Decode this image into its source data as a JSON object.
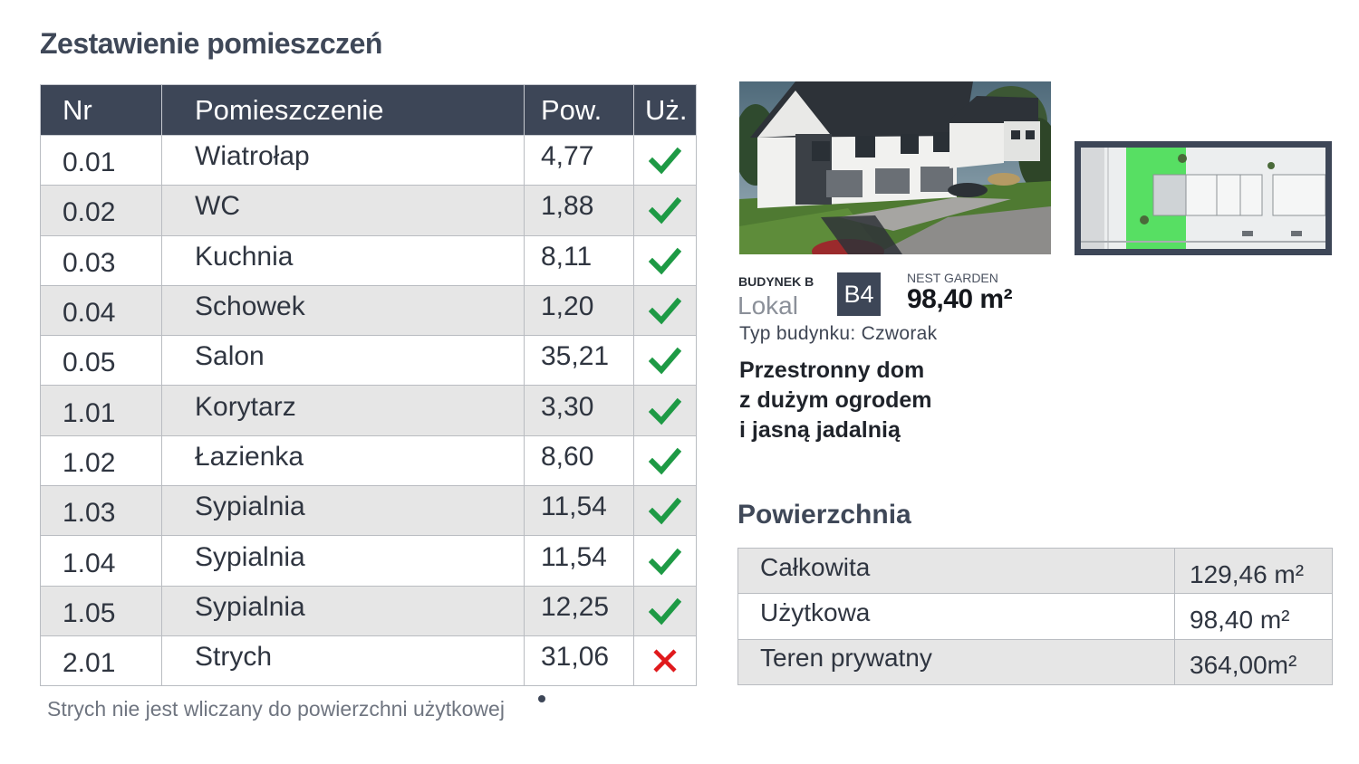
{
  "title": "Zestawienie pomieszczeń",
  "rooms_table": {
    "headers": {
      "nr": "Nr",
      "name": "Pomieszczenie",
      "area": "Pow.",
      "usable": "Uż."
    },
    "rows": [
      {
        "nr": "0.01",
        "name": "Wiatrołap",
        "area": "4,77",
        "usable": true
      },
      {
        "nr": "0.02",
        "name": "WC",
        "area": "1,88",
        "usable": true
      },
      {
        "nr": "0.03",
        "name": "Kuchnia",
        "area": "8,11",
        "usable": true
      },
      {
        "nr": "0.04",
        "name": "Schowek",
        "area": "1,20",
        "usable": true
      },
      {
        "nr": "0.05",
        "name": "Salon",
        "area": "35,21",
        "usable": true
      },
      {
        "nr": "1.01",
        "name": "Korytarz",
        "area": "3,30",
        "usable": true
      },
      {
        "nr": "1.02",
        "name": "Łazienka",
        "area": "8,60",
        "usable": true
      },
      {
        "nr": "1.03",
        "name": "Sypialnia",
        "area": "11,54",
        "usable": true
      },
      {
        "nr": "1.04",
        "name": "Sypialnia",
        "area": "11,54",
        "usable": true
      },
      {
        "nr": "1.05",
        "name": "Sypialnia",
        "area": "12,25",
        "usable": true
      },
      {
        "nr": "2.01",
        "name": "Strych",
        "area": "31,06",
        "usable": false
      }
    ]
  },
  "note": "Strych nie jest wliczany do powierzchni użytkowej",
  "unit": {
    "building_label": "BUDYNEK B",
    "lokal_label": "Lokal",
    "lokal_code": "B4",
    "development": "NEST GARDEN",
    "area": "98,40 m²",
    "building_type": "Typ budynku: Czworak",
    "headline": [
      "Przestronny dom",
      "z dużym ogrodem",
      "i jasną jadalnią"
    ]
  },
  "surfaces": {
    "title": "Powierzchnia",
    "rows": [
      {
        "label": "Całkowita",
        "value": "129,46 m²"
      },
      {
        "label": "Użytkowa",
        "value": "98,40 m²"
      },
      {
        "label": "Teren prywatny",
        "value": "364,00m²"
      }
    ]
  },
  "colors": {
    "header_bg": "#3d4657",
    "check": "#1e9a45",
    "cross": "#e0191c",
    "row_alt": "#e6e6e6",
    "map_highlight": "#3ddc4a"
  },
  "icons": {
    "usable_yes": "check-icon",
    "usable_no": "cross-icon"
  }
}
